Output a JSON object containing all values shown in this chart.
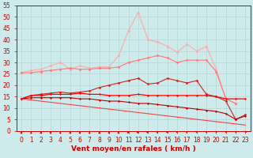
{
  "background_color": "#ceeaea",
  "grid_color": "#b0d8d8",
  "x_labels": [
    "0",
    "1",
    "2",
    "3",
    "4",
    "5",
    "6",
    "7",
    "8",
    "9",
    "10",
    "11",
    "12",
    "13",
    "14",
    "15",
    "16",
    "17",
    "18",
    "19",
    "20",
    "21",
    "22",
    "23"
  ],
  "xlabel": "Vent moyen/en rafales ( km/h )",
  "ylim": [
    0,
    55
  ],
  "yticks": [
    0,
    5,
    10,
    15,
    20,
    25,
    30,
    35,
    40,
    45,
    50,
    55
  ],
  "series": [
    {
      "name": "rafales_max",
      "color": "#ffaaaa",
      "linewidth": 0.8,
      "marker": "*",
      "markersize": 2.5,
      "values": [
        25.5,
        26.5,
        27.0,
        28.5,
        30.0,
        27.0,
        28.5,
        27.5,
        28.0,
        28.0,
        33.0,
        44.0,
        52.0,
        40.0,
        39.0,
        37.0,
        34.5,
        38.0,
        35.0,
        37.0,
        27.0,
        14.0,
        12.0,
        null
      ]
    },
    {
      "name": "rafales_mean",
      "color": "#ff7777",
      "linewidth": 0.8,
      "marker": "D",
      "markersize": 1.5,
      "values": [
        25.5,
        25.5,
        26.0,
        26.5,
        27.0,
        27.5,
        27.0,
        27.0,
        27.5,
        27.5,
        28.0,
        30.0,
        31.0,
        32.0,
        33.0,
        32.0,
        30.0,
        31.0,
        31.0,
        31.0,
        26.0,
        14.0,
        12.0,
        null
      ]
    },
    {
      "name": "moyen_high",
      "color": "#cc2222",
      "linewidth": 0.8,
      "marker": "D",
      "markersize": 1.5,
      "values": [
        14.0,
        15.5,
        16.0,
        16.5,
        17.0,
        16.5,
        17.0,
        17.5,
        19.0,
        20.0,
        21.0,
        22.0,
        23.0,
        20.5,
        21.0,
        23.0,
        22.0,
        21.0,
        22.0,
        16.0,
        15.0,
        13.0,
        5.0,
        7.0
      ]
    },
    {
      "name": "moyen_med",
      "color": "#ff0000",
      "linewidth": 0.9,
      "marker": "D",
      "markersize": 1.2,
      "values": [
        14.0,
        15.5,
        15.5,
        16.0,
        16.0,
        16.0,
        16.5,
        16.0,
        16.0,
        15.5,
        15.5,
        15.5,
        16.0,
        15.5,
        15.5,
        15.5,
        15.5,
        15.5,
        15.5,
        15.5,
        15.0,
        14.0,
        14.0,
        14.0
      ]
    },
    {
      "name": "moyen_low",
      "color": "#bb0000",
      "linewidth": 0.8,
      "marker": "D",
      "markersize": 1.2,
      "values": [
        14.0,
        14.5,
        14.5,
        14.5,
        14.5,
        14.5,
        14.0,
        14.0,
        13.5,
        13.0,
        13.0,
        12.5,
        12.0,
        12.0,
        11.5,
        11.0,
        10.5,
        10.0,
        9.5,
        9.0,
        8.5,
        7.5,
        5.0,
        6.5
      ]
    },
    {
      "name": "base_line",
      "color": "#ee4444",
      "linewidth": 0.8,
      "marker": null,
      "markersize": 0,
      "values": [
        14.0,
        13.5,
        13.0,
        12.5,
        12.0,
        11.5,
        11.0,
        10.5,
        10.0,
        9.5,
        9.0,
        8.5,
        8.0,
        7.5,
        7.0,
        6.5,
        6.0,
        5.5,
        5.0,
        4.5,
        4.0,
        3.5,
        3.0,
        2.5
      ]
    }
  ],
  "arrow_angles": [
    90,
    90,
    90,
    90,
    90,
    90,
    90,
    90,
    90,
    90,
    85,
    80,
    75,
    70,
    65,
    60,
    55,
    50,
    45,
    40,
    35,
    30,
    25,
    20
  ],
  "tick_fontsize": 5.5,
  "axis_fontsize": 6.5,
  "axis_color": "#cc0000",
  "xlabel_color": "#cc0000",
  "spine_color": "#cc0000"
}
